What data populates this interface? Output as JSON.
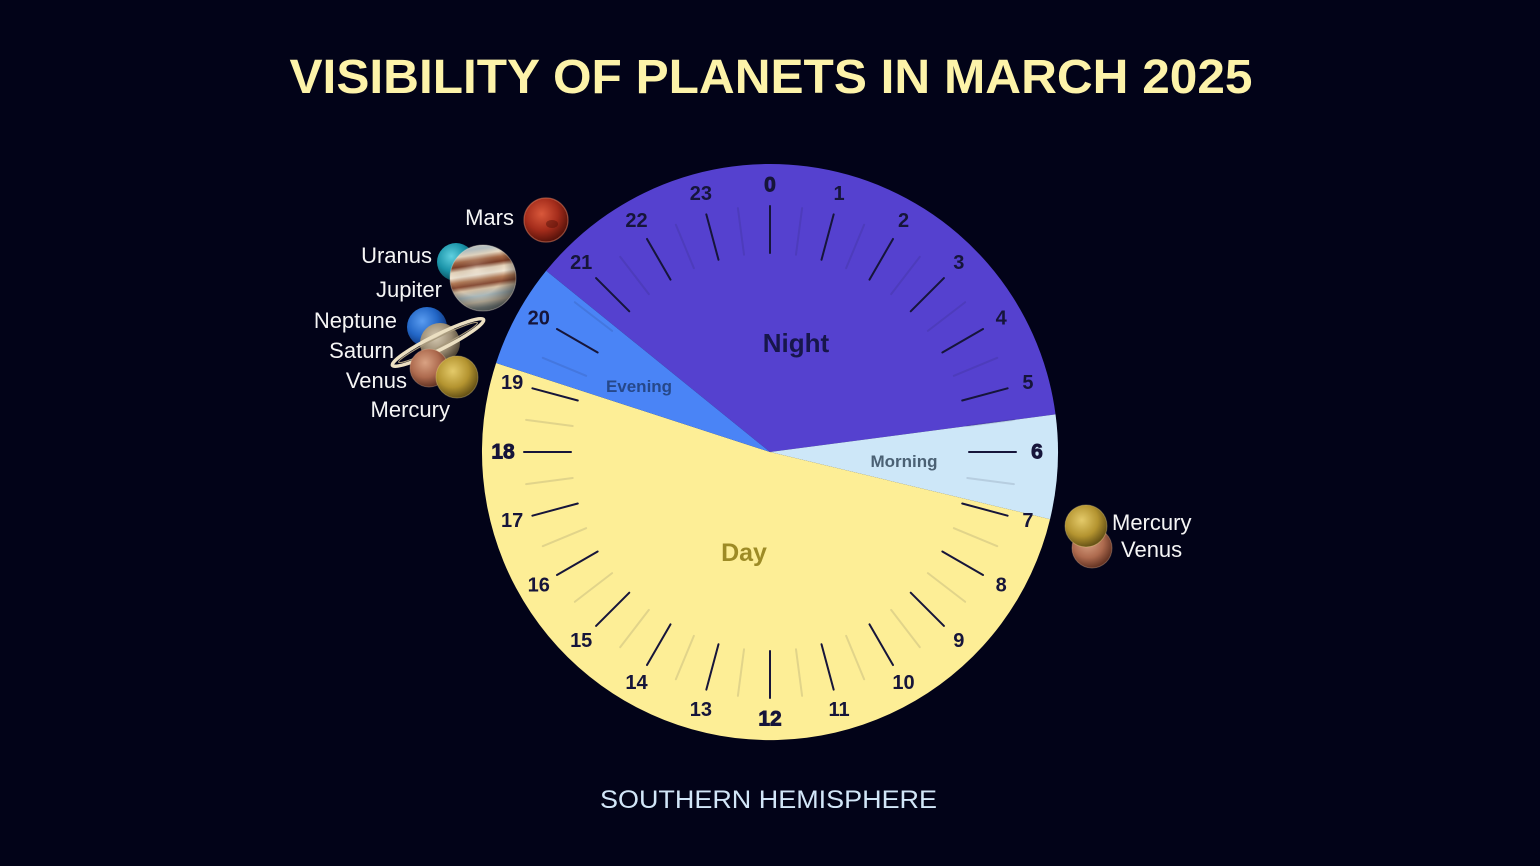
{
  "title": "VISIBILITY OF PLANETS IN MARCH 2025",
  "subtitle": "SOUTHERN HEMISPHERE",
  "colors": {
    "background": "#020318",
    "title": "#fdf3a9",
    "subtitle": "#d2e6f8",
    "tick": "#16153a",
    "planet_label": "#f5f5f5"
  },
  "chart_data": {
    "type": "pie",
    "subtype": "24-hour clock dial",
    "title": "Visibility of Planets in March 2025",
    "subtitle": "Southern Hemisphere",
    "hours": 24,
    "zero_position": "top",
    "direction": "clockwise",
    "tick_labels": [
      "0",
      "1",
      "2",
      "3",
      "4",
      "5",
      "6",
      "7",
      "8",
      "9",
      "10",
      "11",
      "12",
      "13",
      "14",
      "15",
      "16",
      "17",
      "18",
      "19",
      "20",
      "21",
      "22",
      "23"
    ],
    "emphasized_ticks": [
      "0",
      "6",
      "12",
      "18"
    ],
    "minor_tick_interval_hours": 0.5,
    "segments": [
      {
        "name": "Night",
        "start_hour": 20.6,
        "end_hour": 5.5,
        "color": "#5541cf",
        "label_color": "#17164a"
      },
      {
        "name": "Morning",
        "start_hour": 5.5,
        "end_hour": 6.9,
        "color": "#cde7f8",
        "label_color": "#4b6174"
      },
      {
        "name": "Day",
        "start_hour": 6.9,
        "end_hour": 19.2,
        "color": "#fdee96",
        "label_color": "#9d8b26"
      },
      {
        "name": "Evening",
        "start_hour": 19.2,
        "end_hour": 20.6,
        "color": "#4a84f6",
        "label_color": "#26488a"
      }
    ],
    "planets": [
      {
        "name": "Mars",
        "visible_in": "Evening",
        "approx_hour": 21.1
      },
      {
        "name": "Uranus",
        "visible_in": "Evening",
        "approx_hour": 20.1
      },
      {
        "name": "Jupiter",
        "visible_in": "Evening",
        "approx_hour": 20.1
      },
      {
        "name": "Neptune",
        "visible_in": "Evening",
        "approx_hour": 19.3
      },
      {
        "name": "Saturn",
        "visible_in": "Evening",
        "approx_hour": 19.2
      },
      {
        "name": "Venus",
        "visible_in": "Evening",
        "approx_hour": 18.9
      },
      {
        "name": "Mercury",
        "visible_in": "Evening",
        "approx_hour": 18.9
      },
      {
        "name": "Mercury",
        "visible_in": "Morning",
        "approx_hour": 6.9
      },
      {
        "name": "Venus",
        "visible_in": "Morning",
        "approx_hour": 7.1
      }
    ]
  }
}
